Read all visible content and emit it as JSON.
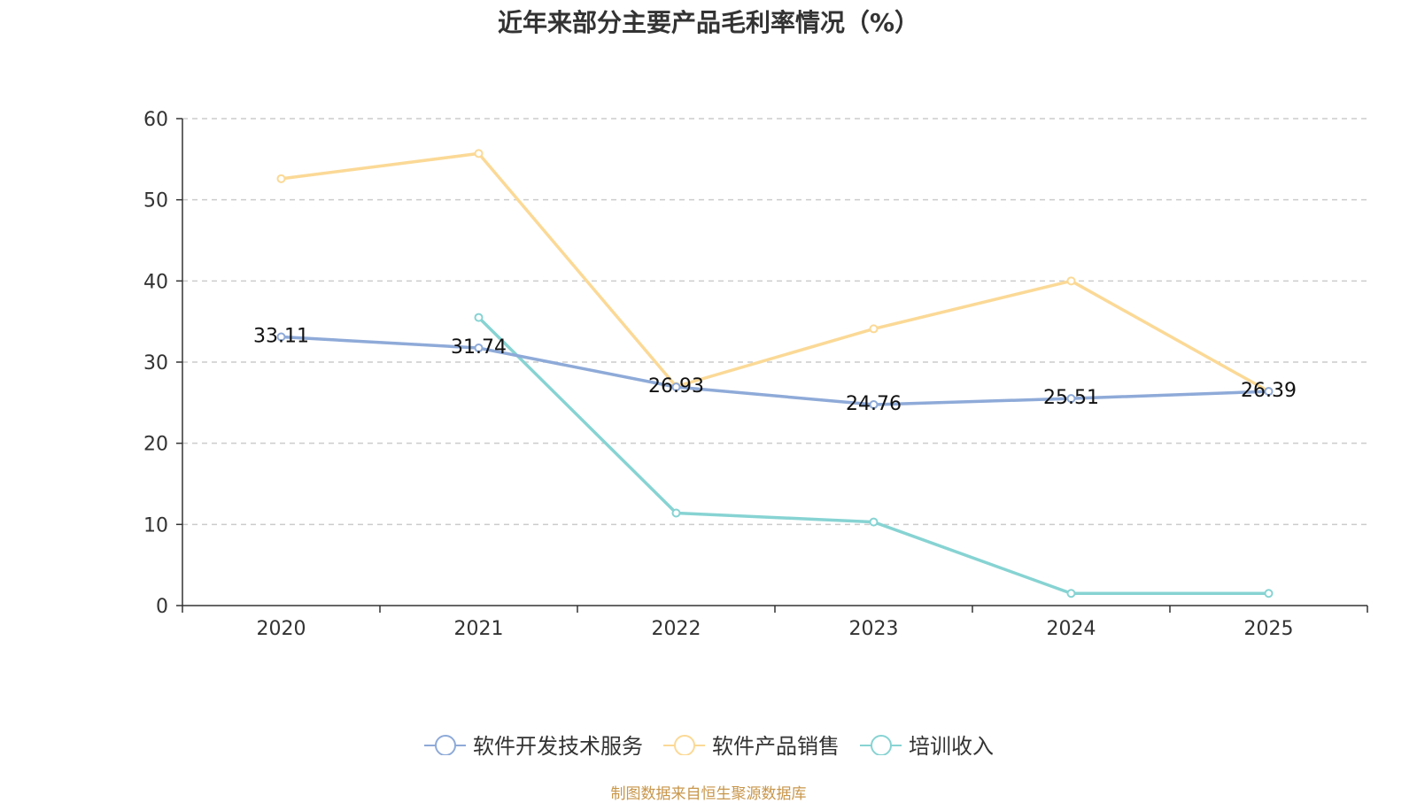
{
  "chart_data": {
    "type": "line",
    "title": "近年来部分主要产品毛利率情况（%）",
    "categories": [
      "2020",
      "2021",
      "2022",
      "2023",
      "2024",
      "2025"
    ],
    "ylim": [
      0,
      60
    ],
    "yticks": [
      "0",
      "10",
      "20",
      "30",
      "40",
      "50",
      "60"
    ],
    "grid": true,
    "legend_position": "bottom-center",
    "series": [
      {
        "name": "软件开发技术服务",
        "color": "#8eaad8",
        "values": [
          33.11,
          31.74,
          26.93,
          24.76,
          25.51,
          26.39
        ],
        "labels": [
          "33.11",
          "31.74",
          "26.93",
          "24.76",
          "25.51",
          "26.39"
        ]
      },
      {
        "name": "软件产品销售",
        "color": "#fbd996",
        "values": [
          52.6,
          55.7,
          27.0,
          34.1,
          40.0,
          26.4
        ],
        "labels": []
      },
      {
        "name": "培训收入",
        "color": "#87d3d3",
        "values": [
          null,
          35.5,
          11.4,
          10.3,
          1.5,
          1.5
        ],
        "labels": []
      }
    ]
  },
  "source": "制图数据来自恒生聚源数据库"
}
